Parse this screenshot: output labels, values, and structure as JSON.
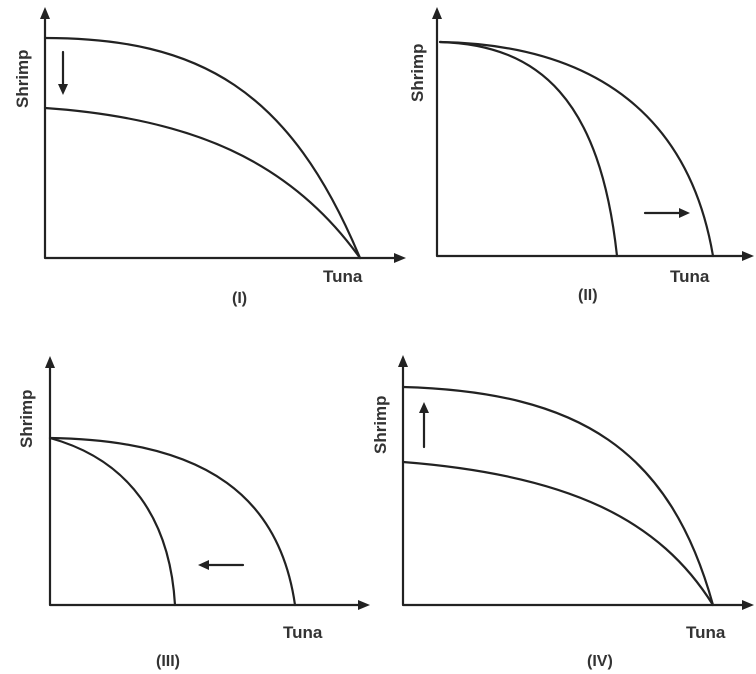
{
  "panels": [
    {
      "id": "I",
      "caption": "(I)",
      "y_label": "Shrimp",
      "x_label": "Tuna",
      "shift_direction": "down",
      "arrow_icon": "arrow-down-icon"
    },
    {
      "id": "II",
      "caption": "(II)",
      "y_label": "Shrimp",
      "x_label": "Tuna",
      "shift_direction": "right",
      "arrow_icon": "arrow-right-icon"
    },
    {
      "id": "III",
      "caption": "(III)",
      "y_label": "Shrimp",
      "x_label": "Tuna",
      "shift_direction": "left",
      "arrow_icon": "arrow-left-icon"
    },
    {
      "id": "IV",
      "caption": "(IV)",
      "y_label": "Shrimp",
      "x_label": "Tuna",
      "shift_direction": "up",
      "arrow_icon": "arrow-up-icon"
    }
  ]
}
